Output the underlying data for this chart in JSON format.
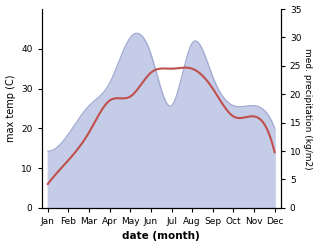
{
  "months": [
    "Jan",
    "Feb",
    "Mar",
    "Apr",
    "May",
    "Jun",
    "Jul",
    "Aug",
    "Sep",
    "Oct",
    "Nov",
    "Dec"
  ],
  "temperature": [
    6,
    12,
    19,
    27,
    28,
    34,
    35,
    35,
    30,
    23,
    23,
    14
  ],
  "precipitation": [
    10,
    13,
    18,
    22,
    30,
    27,
    18,
    29,
    23,
    18,
    18,
    14
  ],
  "temp_color": "#c0504d",
  "precip_fill_color": "#c5cce8",
  "precip_edge_color": "#a0aad0",
  "ylabel_left": "max temp (C)",
  "ylabel_right": "med. precipitation (kg/m2)",
  "xlabel": "date (month)",
  "ylim_left": [
    0,
    50
  ],
  "ylim_right": [
    0,
    35
  ],
  "left_yticks": [
    0,
    10,
    20,
    30,
    40
  ],
  "right_yticks": [
    0,
    5,
    10,
    15,
    20,
    25,
    30,
    35
  ]
}
